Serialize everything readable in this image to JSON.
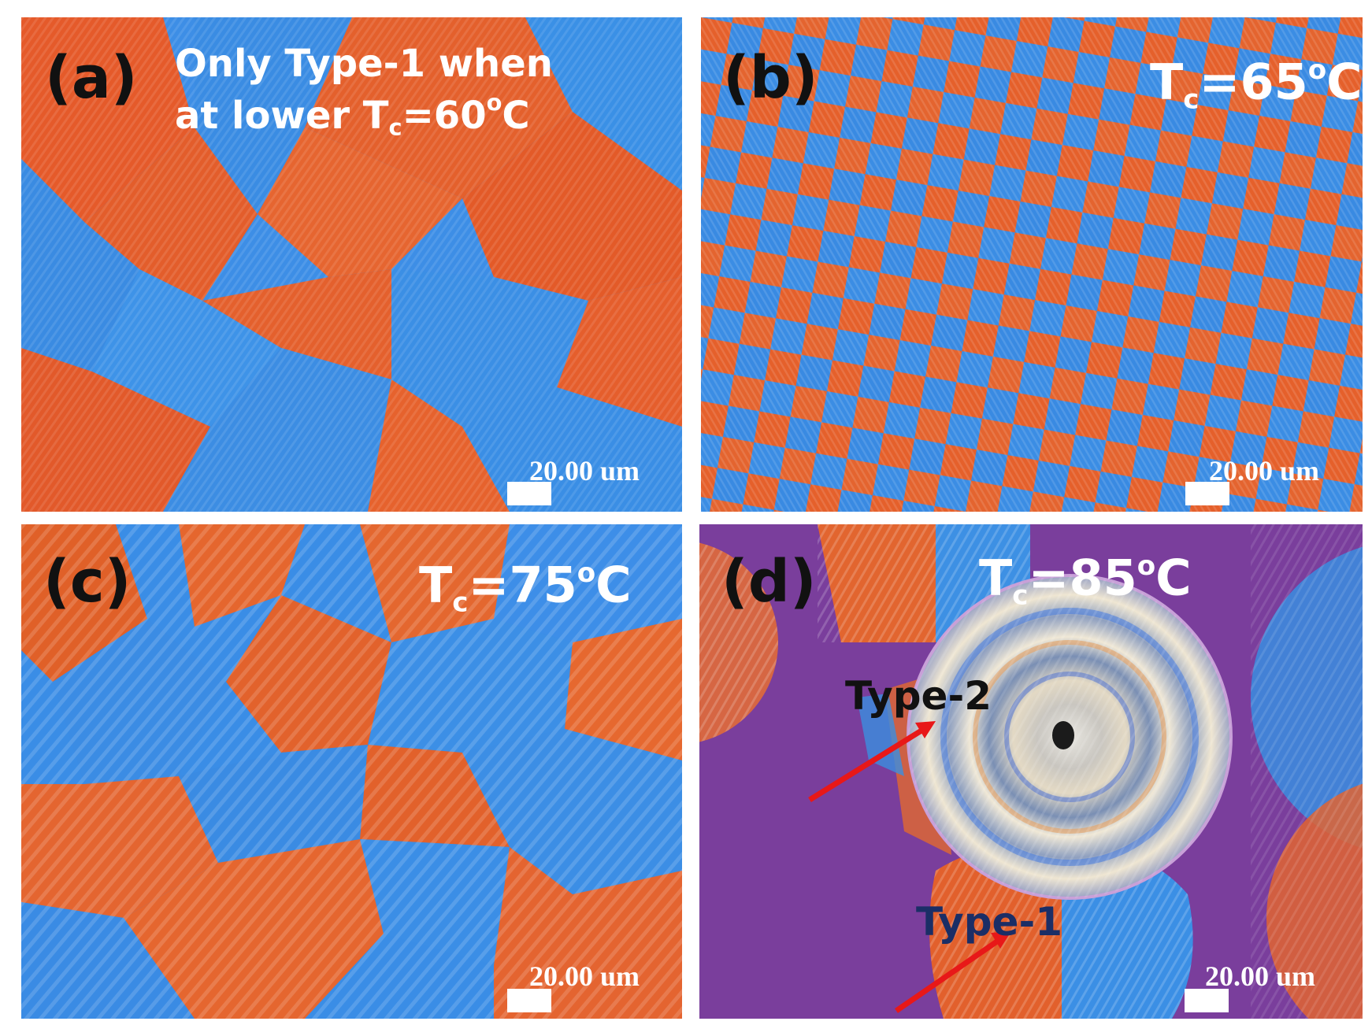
{
  "panels": {
    "a": {
      "label": "(a)",
      "caption_line1": "Only Type-1 when",
      "caption_line2_prefix": "at lower T",
      "caption_sub": "c",
      "caption_value": "=60",
      "caption_sup": "o",
      "caption_unit": "C",
      "scale": "20.00 um"
    },
    "b": {
      "label": "(b)",
      "temp_prefix": "T",
      "temp_sub": "c",
      "temp_value": "=65",
      "temp_sup": "o",
      "temp_unit": "C",
      "scale": "20.00 um"
    },
    "c": {
      "label": "(c)",
      "temp_prefix": "T",
      "temp_sub": "c",
      "temp_value": "=75",
      "temp_sup": "o",
      "temp_unit": "C",
      "scale": "20.00 um"
    },
    "d": {
      "label": "(d)",
      "temp_prefix": "T",
      "temp_sub": "c",
      "temp_value": "=85",
      "temp_sup": "o",
      "temp_unit": "C",
      "type2": "Type-2",
      "type1": "Type-1",
      "scale": "20.00 um"
    }
  },
  "colors": {
    "orange": "#e8622a",
    "blue": "#2f8fe8",
    "purple": "#7a3f9a",
    "arrow": "#e81818"
  }
}
